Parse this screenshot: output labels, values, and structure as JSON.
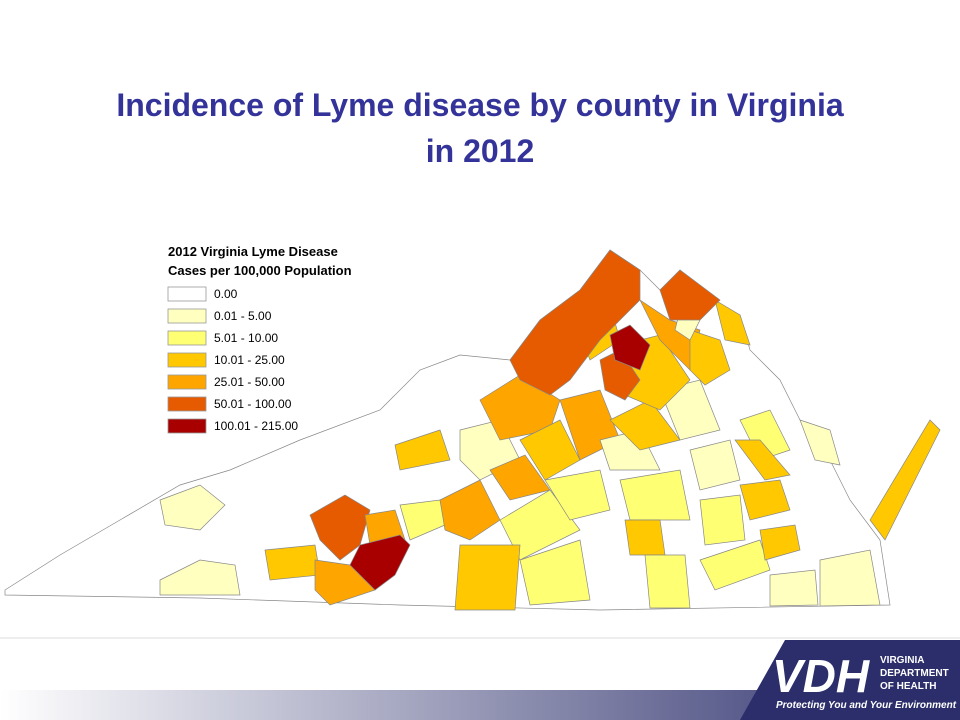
{
  "header": {
    "title": "Incidence of Lyme disease by county in Virginia in 2012"
  },
  "legend": {
    "title": [
      "2012 Virginia Lyme Disease",
      "Cases per 100,000 Population"
    ],
    "items": [
      {
        "label": "0.00",
        "color": "#ffffff"
      },
      {
        "label": "0.01 - 5.00",
        "color": "#ffffc0"
      },
      {
        "label": "5.01 - 10.00",
        "color": "#ffff73"
      },
      {
        "label": "10.01 - 25.00",
        "color": "#ffc800"
      },
      {
        "label": "25.01 - 50.00",
        "color": "#ffa500"
      },
      {
        "label": "50.01 - 100.00",
        "color": "#e65a00"
      },
      {
        "label": "100.01 - 215.00",
        "color": "#a80000"
      }
    ]
  },
  "logo": {
    "mark": "VDH",
    "lines": [
      "VIRGINIA",
      "DEPARTMENT",
      "OF HEALTH"
    ],
    "tagline": "Protecting You and Your Environment"
  }
}
